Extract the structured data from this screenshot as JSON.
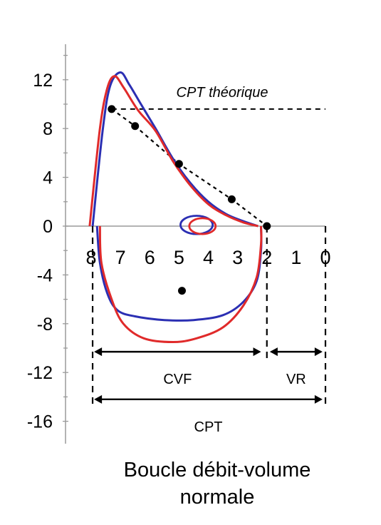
{
  "caption": [
    "Boucle débit-volume",
    "normale"
  ],
  "chart_data": {
    "type": "line",
    "title": "",
    "xlabel": "",
    "ylabel": "",
    "x_axis_reversed": true,
    "xlim": [
      8,
      0
    ],
    "ylim": [
      -16,
      14
    ],
    "yticks": [
      12,
      8,
      4,
      0,
      -4,
      -8,
      -12,
      -16
    ],
    "xticks": [
      8,
      7,
      6,
      5,
      4,
      3,
      2,
      1,
      0
    ],
    "colors": {
      "blue": "#2b2fb3",
      "red": "#e02a2a",
      "dots": "#000000"
    },
    "series": [
      {
        "color": "#2b2fb3",
        "expiration": [
          [
            7.95,
            0
          ],
          [
            7.6,
            8
          ],
          [
            7.35,
            11.5
          ],
          [
            7.0,
            12.6
          ],
          [
            6.7,
            11.6
          ],
          [
            6.3,
            10
          ],
          [
            5.8,
            8
          ],
          [
            5.2,
            5.5
          ],
          [
            4.6,
            3.5
          ],
          [
            4.0,
            2.0
          ],
          [
            3.4,
            1.0
          ],
          [
            2.8,
            0.4
          ],
          [
            2.3,
            0
          ]
        ],
        "inspiration": [
          [
            7.8,
            0
          ],
          [
            7.7,
            -3
          ],
          [
            7.45,
            -5.5
          ],
          [
            7.1,
            -6.9
          ],
          [
            6.5,
            -7.4
          ],
          [
            5.5,
            -7.7
          ],
          [
            4.5,
            -7.7
          ],
          [
            3.5,
            -7.3
          ],
          [
            2.8,
            -6.2
          ],
          [
            2.35,
            -4.5
          ],
          [
            2.2,
            -2
          ],
          [
            2.2,
            0
          ]
        ]
      },
      {
        "color": "#e02a2a",
        "expiration": [
          [
            8.05,
            0
          ],
          [
            7.7,
            8
          ],
          [
            7.45,
            11.3
          ],
          [
            7.2,
            12.3
          ],
          [
            6.9,
            11.4
          ],
          [
            6.4,
            9.5
          ],
          [
            5.8,
            7.8
          ],
          [
            5.2,
            5.3
          ],
          [
            4.6,
            3.3
          ],
          [
            4.0,
            1.8
          ],
          [
            3.4,
            0.9
          ],
          [
            2.8,
            0.3
          ],
          [
            2.3,
            0
          ]
        ],
        "inspiration": [
          [
            7.7,
            0
          ],
          [
            7.65,
            -3
          ],
          [
            7.3,
            -6.0
          ],
          [
            6.9,
            -8.0
          ],
          [
            6.2,
            -9.2
          ],
          [
            5.2,
            -9.5
          ],
          [
            4.4,
            -9.2
          ],
          [
            3.5,
            -8.3
          ],
          [
            2.8,
            -6.5
          ],
          [
            2.35,
            -4.2
          ],
          [
            2.2,
            -1.5
          ],
          [
            2.2,
            0
          ]
        ]
      }
    ],
    "tidal_loops": [
      {
        "color": "#2b2fb3",
        "center": [
          4.4,
          0.1
        ],
        "rx": 0.55,
        "ry": 0.75
      },
      {
        "color": "#e02a2a",
        "center": [
          4.2,
          0.0
        ],
        "rx": 0.45,
        "ry": 0.65
      }
    ],
    "predicted_points": [
      [
        7.3,
        9.6
      ],
      [
        6.5,
        8.2
      ],
      [
        5.0,
        5.1
      ],
      [
        3.2,
        2.2
      ],
      [
        2.0,
        0
      ],
      [
        4.9,
        -5.3
      ]
    ],
    "predicted_line": [
      [
        7.3,
        9.6
      ],
      [
        6.5,
        8.2
      ],
      [
        5.0,
        5.1
      ],
      [
        3.2,
        2.2
      ],
      [
        2.0,
        0
      ]
    ],
    "cpt_theorique": {
      "label": "CPT théorique",
      "x_from": 7.3,
      "x_to": 0,
      "y": 9.6
    },
    "brackets": [
      {
        "label": "CVF",
        "from": 7.9,
        "to": 2.2,
        "y": -10.3
      },
      {
        "label": "VR",
        "from": 1.9,
        "to": 0.1,
        "y": -10.3
      },
      {
        "label": "CPT",
        "from": 7.9,
        "to": 0.1,
        "y": -14.2
      }
    ],
    "verticals": [
      {
        "x": 7.95,
        "y_from": 0,
        "y_to": -14.8
      },
      {
        "x": 2.0,
        "y_from": 0,
        "y_to": -11.0
      },
      {
        "x": 0.0,
        "y_from": 0,
        "y_to": -14.8
      }
    ]
  }
}
